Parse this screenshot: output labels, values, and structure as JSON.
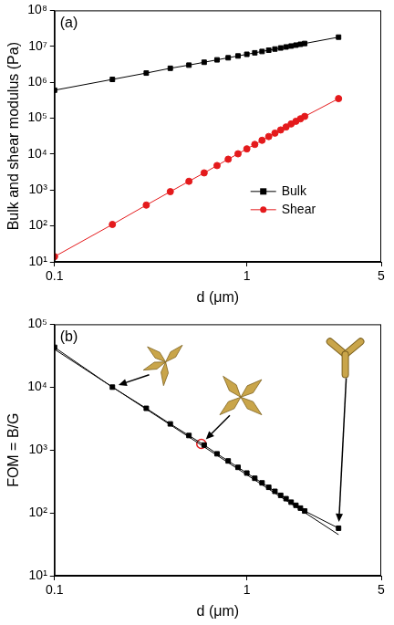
{
  "chart_data": [
    {
      "type": "line",
      "title": "(a)",
      "x_label": "d (μm)",
      "y_label": "Bulk and shear modulus (Pa)",
      "log": true,
      "grid": false,
      "legend": "right",
      "xlim": [
        0.1,
        5
      ],
      "xticks": [
        0.1,
        1,
        5
      ],
      "ylim": [
        10,
        100000000
      ],
      "yticks": [
        {
          "value": 10,
          "label": "10¹"
        },
        {
          "value": 100,
          "label": "10²"
        },
        {
          "value": 1000,
          "label": "10³"
        },
        {
          "value": 10000,
          "label": "10⁴"
        },
        {
          "value": 100000,
          "label": "10⁵"
        },
        {
          "value": 1000000,
          "label": "10⁶"
        },
        {
          "value": 10000000,
          "label": "10⁷"
        },
        {
          "value": 100000000,
          "label": "10⁸"
        }
      ],
      "x": [
        0.1,
        0.2,
        0.3,
        0.4,
        0.5,
        0.6,
        0.7,
        0.8,
        0.9,
        1,
        1.1,
        1.2,
        1.3,
        1.4,
        1.5,
        1.6,
        1.7,
        1.8,
        1.9,
        2,
        3
      ],
      "series": [
        {
          "name": "Bulk",
          "color": "#000000",
          "marker": "square",
          "line_style": "solid",
          "values": [
            600000,
            1200000,
            1800000,
            2450000,
            3000000,
            3600000,
            4200000,
            4800000,
            5400000,
            6000000,
            6600000,
            7200000,
            7800000,
            8400000,
            9000000,
            9600000,
            10200000,
            10800000,
            11400000,
            12000000,
            18000000
          ]
        },
        {
          "name": "Shear",
          "color": "#e41a1c",
          "marker": "circle",
          "line_style": "solid",
          "values": [
            14,
            110,
            380,
            900,
            1750,
            3000,
            4800,
            7200,
            10200,
            14000,
            18600,
            24200,
            30800,
            38400,
            47000,
            57000,
            69000,
            82000,
            96000,
            112000,
            350000
          ]
        }
      ]
    },
    {
      "type": "line",
      "title": "(b)",
      "x_label": "d (μm)",
      "y_label": "FOM = B/G",
      "log": true,
      "grid": false,
      "xlim": [
        0.1,
        5
      ],
      "xticks": [
        0.1,
        1,
        5
      ],
      "ylim": [
        10,
        100000
      ],
      "yticks": [
        {
          "value": 10,
          "label": "10¹"
        },
        {
          "value": 100,
          "label": "10²"
        },
        {
          "value": 1000,
          "label": "10³"
        },
        {
          "value": 10000,
          "label": "10⁴"
        },
        {
          "value": 100000,
          "label": "10⁵"
        }
      ],
      "x": [
        0.1,
        0.2,
        0.3,
        0.4,
        0.5,
        0.6,
        0.7,
        0.8,
        0.9,
        1,
        1.1,
        1.2,
        1.3,
        1.4,
        1.5,
        1.6,
        1.7,
        1.8,
        1.9,
        2,
        3
      ],
      "series": [
        {
          "color": "#000000",
          "marker": "square",
          "line_style": "solid",
          "values": [
            43000,
            10000,
            4600,
            2600,
            1700,
            1200,
            870,
            670,
            530,
            430,
            355,
            300,
            255,
            220,
            190,
            168,
            148,
            132,
            119,
            107,
            57
          ]
        },
        {
          "color": "#000000",
          "marker": "none",
          "line_style": "solid",
          "x": [
            0.1,
            3
          ],
          "values": [
            40000,
            45
          ]
        },
        {
          "color": "#e41a1c",
          "marker": "open_circle",
          "line_style": "none",
          "x": [
            0.58
          ],
          "values": [
            1250
          ]
        }
      ]
    }
  ]
}
